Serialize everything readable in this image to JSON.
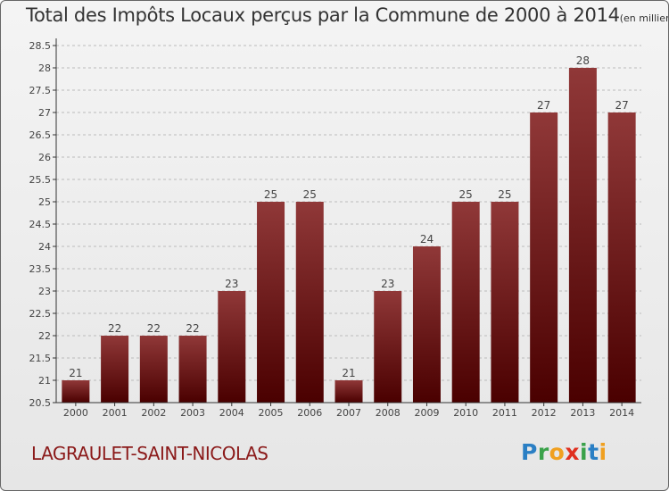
{
  "title": {
    "main": "Total des Impôts Locaux perçus par la Commune de 2000 à 2014",
    "unit": "(en milliers d'€)"
  },
  "commune": "LAGRAULET-SAINT-NICOLAS",
  "logo": {
    "letters": [
      "P",
      "r",
      "o",
      "x",
      "i",
      "t",
      "i"
    ],
    "colors": [
      "#2a7fc4",
      "#3aa24a",
      "#f0a020",
      "#e03020",
      "#3aa24a",
      "#2a7fc4",
      "#f0a020"
    ]
  },
  "colors": {
    "bar_top": "#903838",
    "bar_bottom": "#4a0000",
    "grid": "#bbbbbb",
    "axis": "#333333"
  },
  "chart_data": {
    "type": "bar",
    "title": "Total des Impôts Locaux perçus par la Commune de 2000 à 2014",
    "xlabel": "",
    "ylabel": "",
    "categories": [
      "2000",
      "2001",
      "2002",
      "2003",
      "2004",
      "2005",
      "2006",
      "2007",
      "2008",
      "2009",
      "2010",
      "2011",
      "2012",
      "2013",
      "2014"
    ],
    "values": [
      21,
      22,
      22,
      22,
      23,
      25,
      25,
      21,
      23,
      24,
      25,
      25,
      27,
      28,
      27
    ],
    "labels": [
      "21",
      "22",
      "22",
      "22",
      "23",
      "25",
      "25",
      "21",
      "23",
      "24",
      "25",
      "25",
      "27",
      "28",
      "27"
    ],
    "ylim": [
      20.5,
      28.5
    ],
    "yticks": [
      "20.5",
      "21",
      "21.5",
      "22",
      "22.5",
      "23",
      "23.5",
      "24",
      "24.5",
      "25",
      "25.5",
      "26",
      "26.5",
      "27",
      "27.5",
      "28",
      "28.5"
    ],
    "grid": true
  }
}
